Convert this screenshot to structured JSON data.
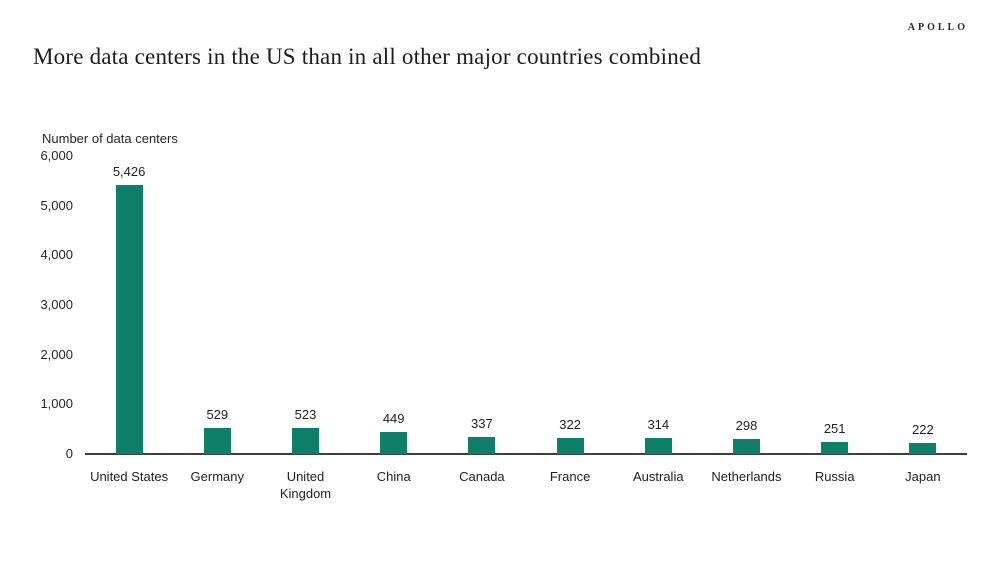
{
  "brand": "APOLLO",
  "title": "More data centers in the US than in all other major countries combined",
  "chart_data": {
    "type": "bar",
    "title": "More data centers in the US than in all other major countries combined",
    "ylabel": "Number of data centers",
    "xlabel": "",
    "categories": [
      "United States",
      "Germany",
      "United Kingdom",
      "China",
      "Canada",
      "France",
      "Australia",
      "Netherlands",
      "Russia",
      "Japan"
    ],
    "values": [
      5426,
      529,
      523,
      449,
      337,
      322,
      314,
      298,
      251,
      222
    ],
    "value_labels": [
      "5,426",
      "529",
      "523",
      "449",
      "337",
      "322",
      "314",
      "298",
      "251",
      "222"
    ],
    "ylim": [
      0,
      6000
    ],
    "yticks": [
      {
        "value": 0,
        "label": "0"
      },
      {
        "value": 1000,
        "label": "1,000"
      },
      {
        "value": 2000,
        "label": "2,000"
      },
      {
        "value": 3000,
        "label": "3,000"
      },
      {
        "value": 4000,
        "label": "4,000"
      },
      {
        "value": 5000,
        "label": "5,000"
      },
      {
        "value": 6000,
        "label": "6,000"
      }
    ],
    "bar_color": "#0d8067",
    "grid": false,
    "legend": false
  }
}
